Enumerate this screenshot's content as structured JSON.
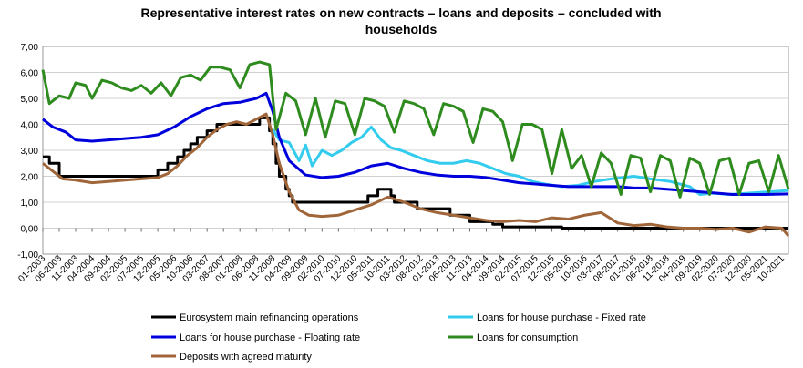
{
  "chart_data": {
    "type": "line",
    "title_line1": "Representative interest rates on new contracts – loans and deposits – concluded with",
    "title_line2": "households",
    "ylim": [
      -1,
      7
    ],
    "yticks": [
      "-1,00",
      "0,00",
      "1,00",
      "2,00",
      "3,00",
      "4,00",
      "5,00",
      "6,00",
      "7,00"
    ],
    "grid": true,
    "legend_placement": "bottom",
    "x_start": "2003-01",
    "x_end": "2021-12",
    "x_ticks": [
      "01-2003",
      "06-2003",
      "11-2003",
      "04-2004",
      "09-2004",
      "02-2005",
      "07-2005",
      "12-2005",
      "05-2006",
      "10-2006",
      "03-2007",
      "08-2007",
      "01-2008",
      "06-2008",
      "11-2008",
      "04-2009",
      "09-2009",
      "02-2010",
      "07-2010",
      "12-2010",
      "05-2011",
      "10-2011",
      "03-2012",
      "08-2012",
      "01-2013",
      "06-2013",
      "11-2013",
      "04-2014",
      "09-2014",
      "02-2015",
      "07-2015",
      "12-2015",
      "05-2016",
      "10-2016",
      "03-2017",
      "08-2017",
      "01-2018",
      "06-2018",
      "11-2018",
      "04-2019",
      "09-2019",
      "02-2020",
      "07-2020",
      "12-2020",
      "05-2021",
      "10-2021"
    ],
    "series": [
      {
        "name": "Eurosystem main refinancing operations",
        "color": "#000000",
        "step": true,
        "points": [
          [
            "2003-01",
            2.75
          ],
          [
            "2003-03",
            2.5
          ],
          [
            "2003-06",
            2.0
          ],
          [
            "2005-12",
            2.25
          ],
          [
            "2006-03",
            2.5
          ],
          [
            "2006-06",
            2.75
          ],
          [
            "2006-08",
            3.0
          ],
          [
            "2006-10",
            3.25
          ],
          [
            "2006-12",
            3.5
          ],
          [
            "2007-03",
            3.75
          ],
          [
            "2007-06",
            4.0
          ],
          [
            "2008-07",
            4.25
          ],
          [
            "2008-10",
            3.75
          ],
          [
            "2008-11",
            3.25
          ],
          [
            "2008-12",
            2.5
          ],
          [
            "2009-01",
            2.0
          ],
          [
            "2009-03",
            1.5
          ],
          [
            "2009-04",
            1.25
          ],
          [
            "2009-05",
            1.0
          ],
          [
            "2011-04",
            1.25
          ],
          [
            "2011-07",
            1.5
          ],
          [
            "2011-11",
            1.25
          ],
          [
            "2011-12",
            1.0
          ],
          [
            "2012-07",
            0.75
          ],
          [
            "2013-05",
            0.5
          ],
          [
            "2013-11",
            0.25
          ],
          [
            "2014-06",
            0.15
          ],
          [
            "2014-09",
            0.05
          ],
          [
            "2016-03",
            0.0
          ],
          [
            "2021-12",
            0.0
          ]
        ]
      },
      {
        "name": "Loans for house purchase - Fixed rate",
        "color": "#33ccee",
        "step": false,
        "points": [
          [
            "2008-11",
            3.8
          ],
          [
            "2009-01",
            3.4
          ],
          [
            "2009-04",
            3.3
          ],
          [
            "2009-07",
            2.6
          ],
          [
            "2009-09",
            3.2
          ],
          [
            "2009-11",
            2.4
          ],
          [
            "2010-02",
            3.0
          ],
          [
            "2010-05",
            2.8
          ],
          [
            "2010-08",
            3.0
          ],
          [
            "2010-11",
            3.3
          ],
          [
            "2011-02",
            3.5
          ],
          [
            "2011-05",
            3.9
          ],
          [
            "2011-08",
            3.4
          ],
          [
            "2011-11",
            3.1
          ],
          [
            "2012-02",
            3.0
          ],
          [
            "2012-06",
            2.8
          ],
          [
            "2012-10",
            2.6
          ],
          [
            "2013-02",
            2.5
          ],
          [
            "2013-06",
            2.5
          ],
          [
            "2013-10",
            2.6
          ],
          [
            "2014-02",
            2.5
          ],
          [
            "2014-06",
            2.3
          ],
          [
            "2014-10",
            2.1
          ],
          [
            "2015-02",
            2.0
          ],
          [
            "2015-06",
            1.8
          ],
          [
            "2015-10",
            1.7
          ],
          [
            "2016-03",
            1.6
          ],
          [
            "2016-08",
            1.65
          ],
          [
            "2017-01",
            1.8
          ],
          [
            "2017-06",
            1.9
          ],
          [
            "2018-01",
            2.0
          ],
          [
            "2018-06",
            1.9
          ],
          [
            "2018-12",
            1.8
          ],
          [
            "2019-06",
            1.6
          ],
          [
            "2019-09",
            1.3
          ],
          [
            "2020-01",
            1.35
          ],
          [
            "2020-06",
            1.3
          ],
          [
            "2020-12",
            1.35
          ],
          [
            "2021-06",
            1.4
          ],
          [
            "2021-12",
            1.45
          ]
        ]
      },
      {
        "name": "Loans for house purchase - Floating rate",
        "color": "#0000dd",
        "step": false,
        "points": [
          [
            "2003-01",
            4.2
          ],
          [
            "2003-04",
            3.9
          ],
          [
            "2003-08",
            3.7
          ],
          [
            "2003-11",
            3.4
          ],
          [
            "2004-04",
            3.35
          ],
          [
            "2004-09",
            3.4
          ],
          [
            "2005-02",
            3.45
          ],
          [
            "2005-07",
            3.5
          ],
          [
            "2005-12",
            3.6
          ],
          [
            "2006-05",
            3.9
          ],
          [
            "2006-10",
            4.3
          ],
          [
            "2007-03",
            4.6
          ],
          [
            "2007-08",
            4.8
          ],
          [
            "2008-01",
            4.85
          ],
          [
            "2008-06",
            5.0
          ],
          [
            "2008-09",
            5.2
          ],
          [
            "2008-11",
            4.5
          ],
          [
            "2009-01",
            3.5
          ],
          [
            "2009-04",
            2.6
          ],
          [
            "2009-09",
            2.05
          ],
          [
            "2010-02",
            1.95
          ],
          [
            "2010-07",
            2.0
          ],
          [
            "2010-12",
            2.15
          ],
          [
            "2011-05",
            2.4
          ],
          [
            "2011-10",
            2.5
          ],
          [
            "2012-03",
            2.3
          ],
          [
            "2012-08",
            2.15
          ],
          [
            "2013-01",
            2.05
          ],
          [
            "2013-06",
            2.0
          ],
          [
            "2013-11",
            2.0
          ],
          [
            "2014-04",
            1.95
          ],
          [
            "2014-09",
            1.85
          ],
          [
            "2015-02",
            1.75
          ],
          [
            "2015-07",
            1.7
          ],
          [
            "2015-12",
            1.65
          ],
          [
            "2016-05",
            1.6
          ],
          [
            "2016-10",
            1.6
          ],
          [
            "2017-03",
            1.6
          ],
          [
            "2017-08",
            1.6
          ],
          [
            "2018-01",
            1.55
          ],
          [
            "2018-06",
            1.55
          ],
          [
            "2018-11",
            1.5
          ],
          [
            "2019-04",
            1.45
          ],
          [
            "2019-09",
            1.4
          ],
          [
            "2020-02",
            1.35
          ],
          [
            "2020-07",
            1.3
          ],
          [
            "2020-12",
            1.3
          ],
          [
            "2021-05",
            1.3
          ],
          [
            "2021-12",
            1.32
          ]
        ]
      },
      {
        "name": "Loans for consumption",
        "color": "#2e8b1e",
        "step": false,
        "points": [
          [
            "2003-01",
            6.1
          ],
          [
            "2003-03",
            4.8
          ],
          [
            "2003-06",
            5.1
          ],
          [
            "2003-09",
            5.0
          ],
          [
            "2003-11",
            5.6
          ],
          [
            "2004-02",
            5.5
          ],
          [
            "2004-04",
            5.0
          ],
          [
            "2004-07",
            5.7
          ],
          [
            "2004-10",
            5.6
          ],
          [
            "2005-01",
            5.4
          ],
          [
            "2005-04",
            5.3
          ],
          [
            "2005-07",
            5.5
          ],
          [
            "2005-10",
            5.2
          ],
          [
            "2006-01",
            5.6
          ],
          [
            "2006-04",
            5.1
          ],
          [
            "2006-07",
            5.8
          ],
          [
            "2006-10",
            5.9
          ],
          [
            "2007-01",
            5.7
          ],
          [
            "2007-04",
            6.2
          ],
          [
            "2007-07",
            6.2
          ],
          [
            "2007-10",
            6.1
          ],
          [
            "2008-01",
            5.4
          ],
          [
            "2008-04",
            6.3
          ],
          [
            "2008-07",
            6.4
          ],
          [
            "2008-10",
            6.3
          ],
          [
            "2008-12",
            3.8
          ],
          [
            "2009-03",
            5.2
          ],
          [
            "2009-06",
            4.9
          ],
          [
            "2009-09",
            3.6
          ],
          [
            "2009-12",
            5.0
          ],
          [
            "2010-03",
            3.5
          ],
          [
            "2010-06",
            4.9
          ],
          [
            "2010-09",
            4.8
          ],
          [
            "2010-12",
            3.6
          ],
          [
            "2011-03",
            5.0
          ],
          [
            "2011-06",
            4.9
          ],
          [
            "2011-09",
            4.7
          ],
          [
            "2011-12",
            3.7
          ],
          [
            "2012-03",
            4.9
          ],
          [
            "2012-06",
            4.8
          ],
          [
            "2012-09",
            4.6
          ],
          [
            "2012-12",
            3.6
          ],
          [
            "2013-03",
            4.8
          ],
          [
            "2013-06",
            4.7
          ],
          [
            "2013-09",
            4.5
          ],
          [
            "2013-12",
            3.3
          ],
          [
            "2014-03",
            4.6
          ],
          [
            "2014-06",
            4.5
          ],
          [
            "2014-09",
            4.1
          ],
          [
            "2014-12",
            2.6
          ],
          [
            "2015-03",
            4.0
          ],
          [
            "2015-06",
            4.0
          ],
          [
            "2015-09",
            3.8
          ],
          [
            "2015-12",
            2.1
          ],
          [
            "2016-03",
            3.8
          ],
          [
            "2016-06",
            2.3
          ],
          [
            "2016-09",
            2.8
          ],
          [
            "2016-12",
            1.6
          ],
          [
            "2017-03",
            2.9
          ],
          [
            "2017-06",
            2.5
          ],
          [
            "2017-09",
            1.3
          ],
          [
            "2017-12",
            2.8
          ],
          [
            "2018-03",
            2.7
          ],
          [
            "2018-06",
            1.4
          ],
          [
            "2018-09",
            2.8
          ],
          [
            "2018-12",
            2.6
          ],
          [
            "2019-03",
            1.2
          ],
          [
            "2019-06",
            2.7
          ],
          [
            "2019-09",
            2.5
          ],
          [
            "2019-12",
            1.3
          ],
          [
            "2020-03",
            2.6
          ],
          [
            "2020-06",
            2.7
          ],
          [
            "2020-09",
            1.3
          ],
          [
            "2020-12",
            2.5
          ],
          [
            "2021-03",
            2.6
          ],
          [
            "2021-06",
            1.4
          ],
          [
            "2021-09",
            2.8
          ],
          [
            "2021-12",
            1.5
          ]
        ]
      },
      {
        "name": "Deposits with agreed maturity",
        "color": "#a0663a",
        "step": false,
        "points": [
          [
            "2003-01",
            2.5
          ],
          [
            "2003-04",
            2.2
          ],
          [
            "2003-07",
            1.9
          ],
          [
            "2003-11",
            1.85
          ],
          [
            "2004-04",
            1.75
          ],
          [
            "2004-09",
            1.8
          ],
          [
            "2005-02",
            1.85
          ],
          [
            "2005-07",
            1.9
          ],
          [
            "2005-12",
            1.95
          ],
          [
            "2006-03",
            2.1
          ],
          [
            "2006-06",
            2.4
          ],
          [
            "2006-09",
            2.8
          ],
          [
            "2006-12",
            3.1
          ],
          [
            "2007-03",
            3.5
          ],
          [
            "2007-06",
            3.8
          ],
          [
            "2007-09",
            4.0
          ],
          [
            "2007-12",
            4.1
          ],
          [
            "2008-03",
            4.0
          ],
          [
            "2008-06",
            4.2
          ],
          [
            "2008-09",
            4.4
          ],
          [
            "2008-11",
            3.6
          ],
          [
            "2009-01",
            2.5
          ],
          [
            "2009-04",
            1.4
          ],
          [
            "2009-07",
            0.7
          ],
          [
            "2009-10",
            0.5
          ],
          [
            "2010-02",
            0.45
          ],
          [
            "2010-07",
            0.5
          ],
          [
            "2010-12",
            0.7
          ],
          [
            "2011-05",
            0.9
          ],
          [
            "2011-10",
            1.2
          ],
          [
            "2012-03",
            1.0
          ],
          [
            "2012-08",
            0.75
          ],
          [
            "2013-01",
            0.6
          ],
          [
            "2013-06",
            0.5
          ],
          [
            "2013-11",
            0.4
          ],
          [
            "2014-04",
            0.3
          ],
          [
            "2014-09",
            0.25
          ],
          [
            "2015-02",
            0.3
          ],
          [
            "2015-07",
            0.25
          ],
          [
            "2015-12",
            0.4
          ],
          [
            "2016-05",
            0.35
          ],
          [
            "2016-10",
            0.5
          ],
          [
            "2017-03",
            0.6
          ],
          [
            "2017-08",
            0.2
          ],
          [
            "2018-01",
            0.1
          ],
          [
            "2018-06",
            0.15
          ],
          [
            "2018-11",
            0.05
          ],
          [
            "2019-04",
            0.0
          ],
          [
            "2019-09",
            0.0
          ],
          [
            "2020-02",
            -0.05
          ],
          [
            "2020-07",
            0.0
          ],
          [
            "2020-12",
            -0.15
          ],
          [
            "2021-05",
            0.05
          ],
          [
            "2021-10",
            0.0
          ],
          [
            "2021-12",
            -0.3
          ]
        ]
      }
    ]
  }
}
